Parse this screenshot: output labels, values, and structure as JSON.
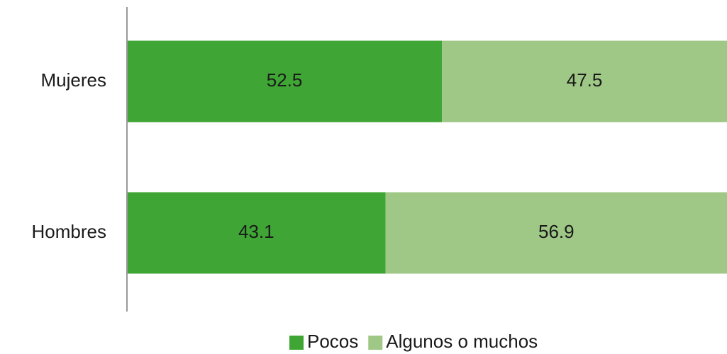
{
  "chart_data": {
    "type": "stacked-bar-horizontal",
    "categories": [
      "Mujeres",
      "Hombres"
    ],
    "series": [
      {
        "name": "Pocos",
        "color": "#3fa535",
        "values": [
          52.5,
          43.1
        ]
      },
      {
        "name": "Algunos o muchos",
        "color": "#9fc886",
        "values": [
          47.5,
          56.9
        ]
      }
    ],
    "xlim": [
      0,
      100
    ],
    "legend": "bottom"
  }
}
